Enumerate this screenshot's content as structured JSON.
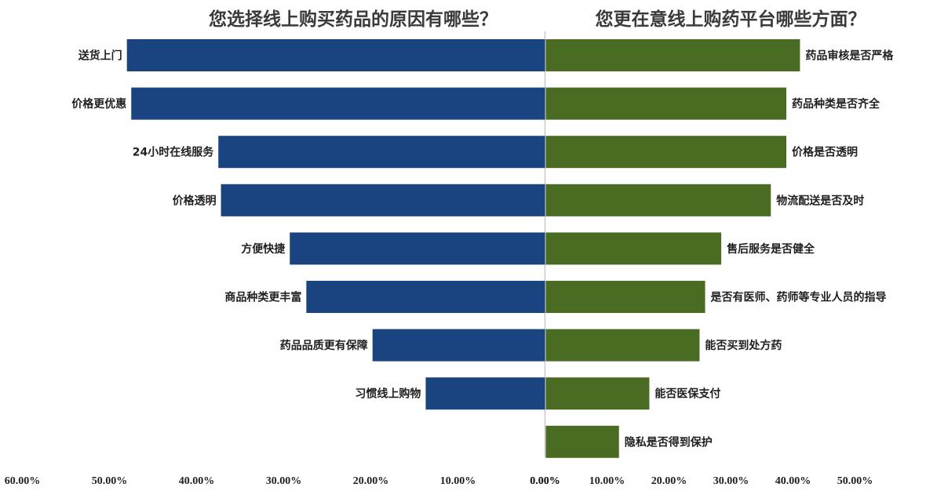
{
  "chart_data": {
    "type": "bar",
    "orientation": "horizontal",
    "layout": "butterfly",
    "colors": {
      "left": "#1a4480",
      "right": "#4a6b22",
      "axis": "#c8c8c8"
    },
    "left": {
      "title": "您选择线上购买药品的原因有哪些？",
      "categories": [
        "送货上门",
        "价格更优惠",
        "24小时在线服务",
        "价格透明",
        "方便快捷",
        "商品种类更丰富",
        "药品品质更有保障",
        "习惯线上购物"
      ],
      "values": [
        0.48,
        0.475,
        0.375,
        0.372,
        0.293,
        0.274,
        0.198,
        0.137
      ],
      "ticks": [
        "60.00%",
        "50.00%",
        "40.00%",
        "30.00%",
        "20.00%",
        "10.00%",
        "0.00%"
      ]
    },
    "right": {
      "title": "您更在意线上购药平台哪些方面？",
      "categories": [
        "药品审核是否严格",
        "药品种类是否齐全",
        "价格是否透明",
        "物流配送是否及时",
        "售后服务是否健全",
        "是否有医师、药师等专业人员的指导",
        "能否买到处方药",
        "能否医保支付",
        "隐私是否得到保护"
      ],
      "values": [
        0.41,
        0.388,
        0.388,
        0.363,
        0.283,
        0.257,
        0.248,
        0.167,
        0.118
      ],
      "ticks": [
        "0.00%",
        "10.00%",
        "20.00%",
        "30.00%",
        "40.00%",
        "50.00%"
      ]
    }
  }
}
